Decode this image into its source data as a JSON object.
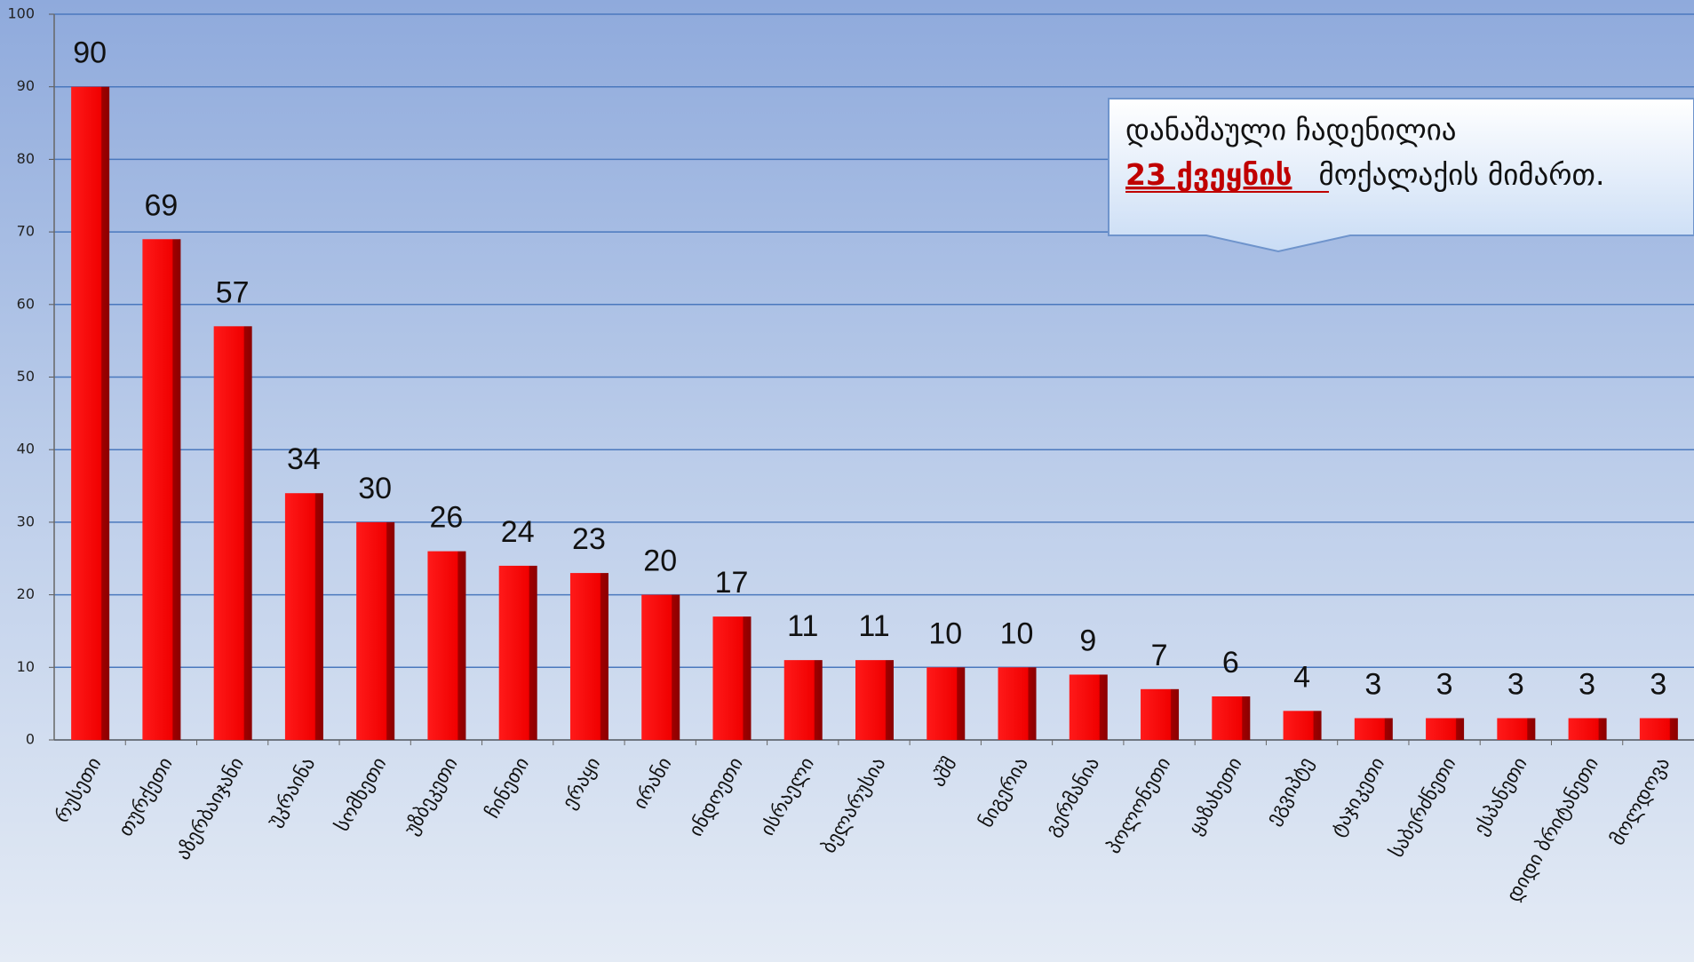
{
  "chart_data": {
    "type": "bar",
    "categories": [
      "რუსეთი",
      "თურქეთი",
      "აზერბაიჯანი",
      "უკრაინა",
      "სომხეთი",
      "უზბეკეთი",
      "ჩინეთი",
      "ერაყი",
      "ირანი",
      "ინდოეთი",
      "ისრაელი",
      "ბელარუსია",
      "აშშ",
      "ნიგერია",
      "გერმანია",
      "პოლონეთი",
      "ყაზახეთი",
      "ეგვიპტე",
      "ტაჯიკეთი",
      "საბერძნეთი",
      "ესპანეთი",
      "დიდი ბრიტანეთი",
      "მოლდოვა"
    ],
    "values": [
      90,
      69,
      57,
      34,
      30,
      26,
      24,
      23,
      20,
      17,
      11,
      11,
      10,
      10,
      9,
      7,
      6,
      4,
      3,
      3,
      3,
      3,
      3
    ],
    "color": "#ff0000",
    "ylim": [
      0,
      100
    ],
    "yticks": [
      0,
      10,
      20,
      30,
      40,
      50,
      60,
      70,
      80,
      90,
      100
    ],
    "grid": true,
    "annotation": {
      "line1": "დანაშაული ჩადენილია",
      "highlight": "23 ქვეყნის",
      "rest": "მოქალაქის მიმართ."
    }
  }
}
